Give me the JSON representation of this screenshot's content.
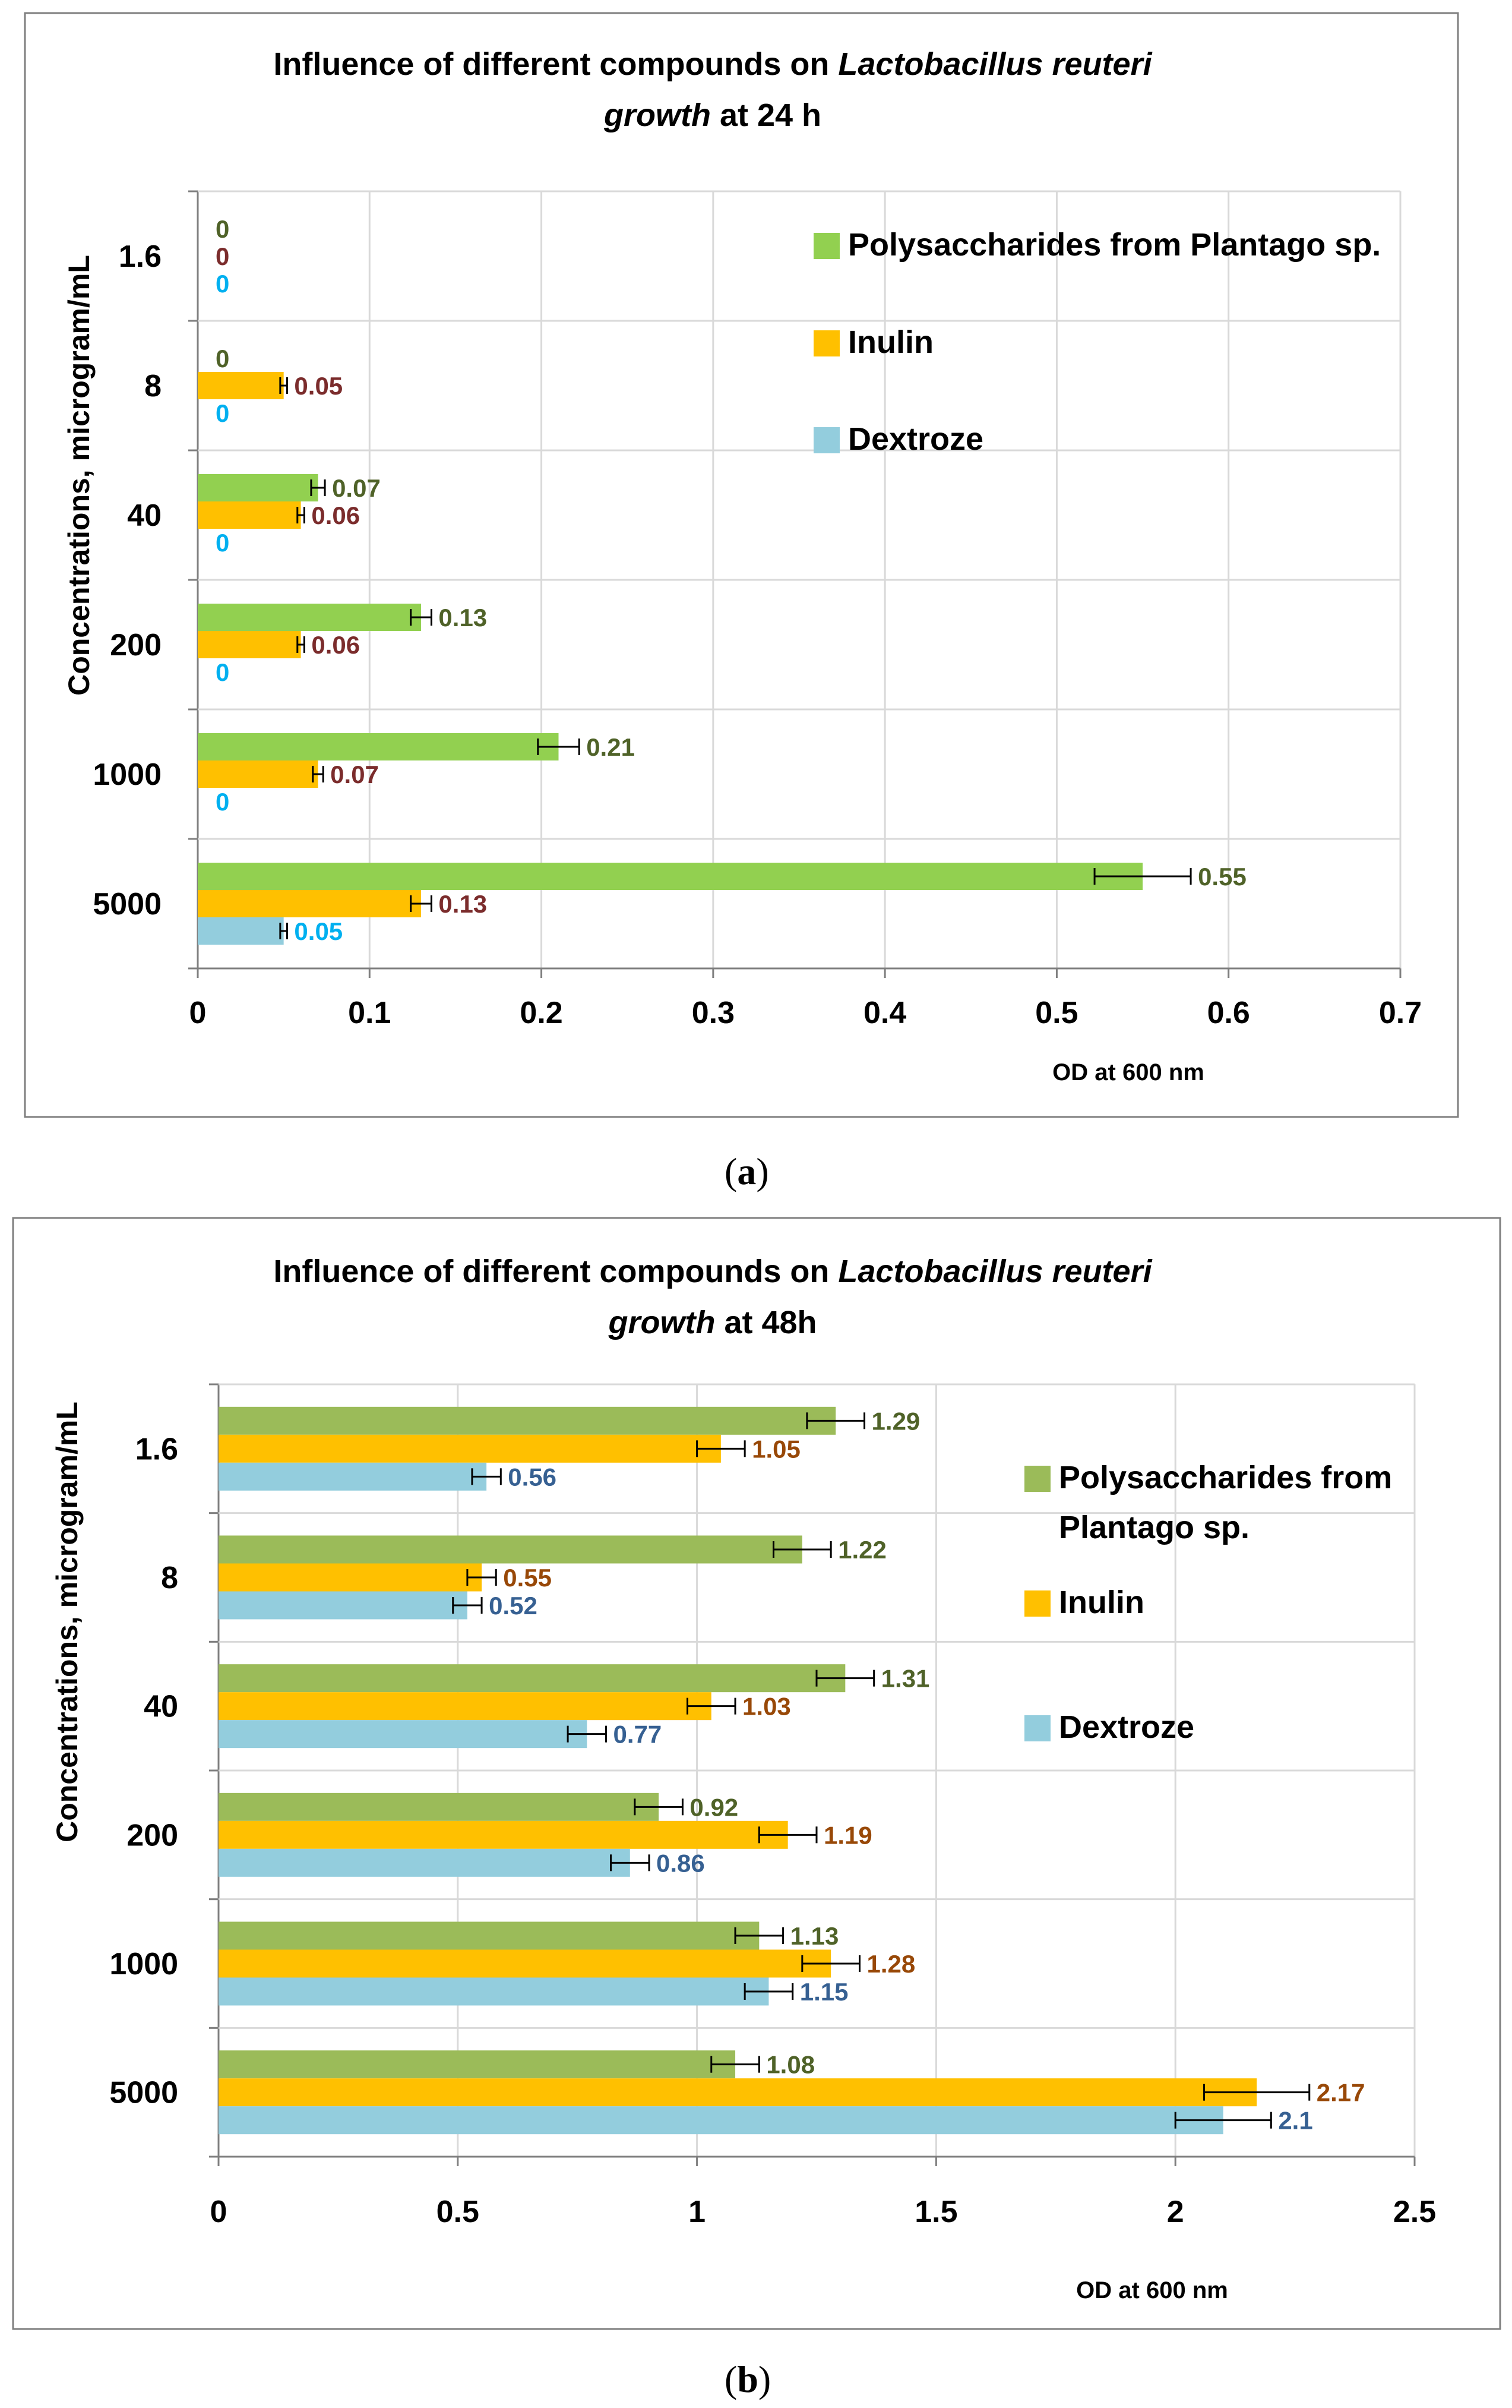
{
  "figure": {
    "panel_a_label_open": "(",
    "panel_a_letter": "a",
    "panel_a_label_close": ")",
    "panel_b_label_open": "(",
    "panel_b_letter": "b",
    "panel_b_label_close": ")"
  },
  "colors": {
    "polysaccharides": "#92D050",
    "inulin": "#FFC000",
    "dextroze": "#93CDDD",
    "poly_label_a": "#4F6228",
    "inulin_label_a": "#7B2C2C",
    "dex_label_a": "#00B0F0",
    "poly_b": "#9BBB59",
    "poly_label_b": "#4F6228",
    "inulin_label_b": "#984807",
    "dex_label_b": "#366092"
  },
  "chart_data": [
    {
      "type": "bar",
      "orientation": "horizontal",
      "title_part1": "Influence of different compounds on ",
      "title_italic1": "Lactobacillus reuteri",
      "title_italic2": "growth",
      "title_part2": " at 24 h",
      "xlabel": "OD at  600 nm",
      "ylabel": "Concentrations, microgram/mL",
      "xlim": [
        0,
        0.7
      ],
      "xticks": [
        "0",
        "0.1",
        "0.2",
        "0.3",
        "0.4",
        "0.5",
        "0.6",
        "0.7"
      ],
      "categories": [
        "1.6",
        "8",
        "40",
        "200",
        "1000",
        "5000"
      ],
      "legend": [
        "Polysaccharides from Plantago sp.",
        "Inulin",
        "Dextroze"
      ],
      "legend_position": "top-right",
      "series": [
        {
          "name": "Polysaccharides from Plantago sp.",
          "values": [
            0,
            0,
            0.07,
            0.13,
            0.21,
            0.55
          ],
          "labels": [
            "0",
            "0",
            "0.07",
            "0.13",
            "0.21",
            "0.55"
          ],
          "errors": [
            0,
            0,
            0.004,
            0.006,
            0.012,
            0.028
          ]
        },
        {
          "name": "Inulin",
          "values": [
            0,
            0.05,
            0.06,
            0.06,
            0.07,
            0.13
          ],
          "labels": [
            "0",
            "0.05",
            "0.06",
            "0.06",
            "0.07",
            "0.13"
          ],
          "errors": [
            0,
            0.002,
            0.002,
            0.002,
            0.003,
            0.006
          ]
        },
        {
          "name": "Dextroze",
          "values": [
            0,
            0,
            0,
            0,
            0,
            0.05
          ],
          "labels": [
            "0",
            "0",
            "0",
            "0",
            "0",
            "0.05"
          ],
          "errors": [
            0,
            0,
            0,
            0,
            0,
            0.002
          ]
        }
      ]
    },
    {
      "type": "bar",
      "orientation": "horizontal",
      "title_part1": "Influence of different compounds on ",
      "title_italic1": "Lactobacillus reuteri",
      "title_italic2": "growth",
      "title_part2": " at 48h",
      "xlabel": "OD at  600 nm",
      "ylabel": "Concentrations, microgram/mL",
      "xlim": [
        0,
        2.5
      ],
      "xticks": [
        "0",
        "0.5",
        "1",
        "1.5",
        "2",
        "2.5"
      ],
      "categories": [
        "1.6",
        "8",
        "40",
        "200",
        "1000",
        "5000"
      ],
      "legend": [
        "Polysaccharides from",
        "Plantago sp.",
        "Inulin",
        "Dextroze"
      ],
      "legend_position": "right",
      "series": [
        {
          "name": "Polysaccharides from Plantago sp.",
          "values": [
            1.29,
            1.22,
            1.31,
            0.92,
            1.13,
            1.08
          ],
          "labels": [
            "1.29",
            "1.22",
            "1.31",
            "0.92",
            "1.13",
            "1.08"
          ],
          "errors": [
            0.06,
            0.06,
            0.06,
            0.05,
            0.05,
            0.05
          ]
        },
        {
          "name": "Inulin",
          "values": [
            1.05,
            0.55,
            1.03,
            1.19,
            1.28,
            2.17
          ],
          "labels": [
            "1.05",
            "0.55",
            "1.03",
            "1.19",
            "1.28",
            "2.17"
          ],
          "errors": [
            0.05,
            0.03,
            0.05,
            0.06,
            0.06,
            0.11
          ]
        },
        {
          "name": "Dextroze",
          "values": [
            0.56,
            0.52,
            0.77,
            0.86,
            1.15,
            2.1
          ],
          "labels": [
            "0.56",
            "0.52",
            "0.77",
            "0.86",
            "1.15",
            "2.1"
          ],
          "errors": [
            0.03,
            0.03,
            0.04,
            0.04,
            0.05,
            0.1
          ]
        }
      ]
    }
  ]
}
